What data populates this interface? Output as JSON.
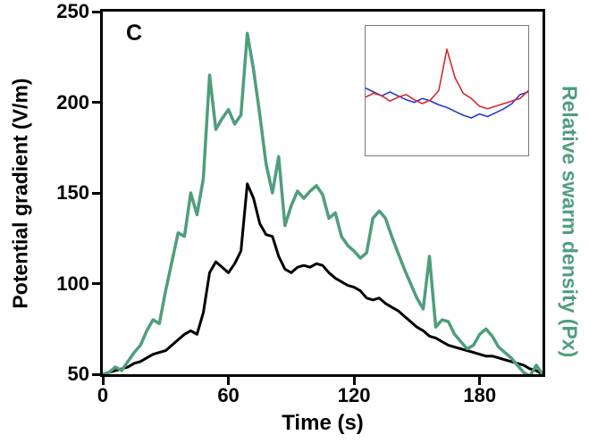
{
  "panel_label": "C",
  "colors": {
    "swarm_green": "#4f9e7b",
    "potential_black": "#000000",
    "inset_red": "#d42a2a",
    "inset_blue": "#2637d4",
    "axis": "#000000",
    "background": "#ffffff"
  },
  "chart_data": {
    "type": "line",
    "title": "",
    "xlabel": "Time (s)",
    "ylabel_left": "Potential gradient (V/m)",
    "ylabel_right": "Relative swarm density (Px)",
    "xlim": [
      0,
      210
    ],
    "ylim": [
      50,
      250
    ],
    "x_ticks": [
      0,
      60,
      120,
      180
    ],
    "y_ticks": [
      50,
      100,
      150,
      200,
      250
    ],
    "grid": false,
    "legend": "none",
    "series": [
      {
        "name": "Potential gradient (V/m)",
        "color": "#000000",
        "width": 3,
        "x": [
          0,
          3,
          6,
          9,
          12,
          15,
          18,
          21,
          24,
          27,
          30,
          33,
          36,
          39,
          42,
          45,
          48,
          51,
          54,
          57,
          60,
          63,
          66,
          69,
          72,
          75,
          78,
          81,
          84,
          87,
          90,
          93,
          96,
          99,
          102,
          105,
          108,
          111,
          114,
          117,
          120,
          123,
          126,
          129,
          132,
          135,
          138,
          141,
          144,
          147,
          150,
          153,
          156,
          159,
          162,
          165,
          168,
          171,
          174,
          177,
          180,
          183,
          186,
          189,
          192,
          195,
          198,
          201,
          204,
          207,
          210
        ],
        "values": [
          50,
          51,
          52,
          53,
          54,
          56,
          57,
          59,
          61,
          62,
          63,
          66,
          69,
          72,
          74,
          72,
          84,
          106,
          112,
          109,
          106,
          111,
          118,
          155,
          147,
          133,
          127,
          126,
          115,
          108,
          106,
          109,
          110,
          109,
          111,
          110,
          106,
          103,
          101,
          99,
          98,
          96,
          92,
          91,
          92,
          89,
          87,
          85,
          82,
          79,
          76,
          74,
          71,
          70,
          68,
          66,
          65,
          64,
          63,
          62,
          61,
          60,
          60,
          59,
          58,
          57,
          56,
          55,
          53,
          52,
          50
        ]
      },
      {
        "name": "Relative swarm density (Px)",
        "color": "#4f9e7b",
        "width": 3.5,
        "x": [
          0,
          3,
          6,
          9,
          12,
          15,
          18,
          21,
          24,
          27,
          30,
          33,
          36,
          39,
          42,
          45,
          48,
          51,
          54,
          57,
          60,
          63,
          66,
          69,
          72,
          75,
          78,
          81,
          84,
          87,
          90,
          93,
          96,
          99,
          102,
          105,
          108,
          111,
          114,
          117,
          120,
          123,
          126,
          129,
          132,
          135,
          138,
          141,
          144,
          147,
          150,
          153,
          156,
          159,
          162,
          165,
          168,
          171,
          174,
          177,
          180,
          183,
          186,
          189,
          192,
          195,
          198,
          201,
          204,
          207,
          210
        ],
        "values": [
          50,
          51,
          54,
          52,
          57,
          62,
          66,
          74,
          80,
          78,
          96,
          112,
          128,
          126,
          150,
          138,
          158,
          215,
          185,
          191,
          196,
          188,
          193,
          238,
          218,
          193,
          166,
          150,
          170,
          132,
          143,
          151,
          147,
          151,
          154,
          149,
          136,
          139,
          126,
          121,
          118,
          114,
          117,
          136,
          140,
          136,
          126,
          117,
          108,
          100,
          92,
          86,
          115,
          76,
          80,
          79,
          72,
          68,
          64,
          66,
          72,
          75,
          71,
          65,
          62,
          59,
          55,
          51,
          49,
          55,
          50
        ]
      }
    ],
    "inset": {
      "type": "line",
      "xlim": [
        0,
        100
      ],
      "ylim": [
        0,
        1
      ],
      "series": [
        {
          "name": "inset-blue-trace",
          "color": "#2637d4",
          "width": 1.6,
          "x": [
            0,
            5,
            10,
            15,
            20,
            25,
            30,
            35,
            40,
            45,
            50,
            55,
            60,
            65,
            70,
            75,
            80,
            85,
            90,
            95,
            100
          ],
          "values": [
            0.52,
            0.49,
            0.46,
            0.49,
            0.46,
            0.43,
            0.41,
            0.44,
            0.42,
            0.39,
            0.37,
            0.34,
            0.31,
            0.29,
            0.32,
            0.3,
            0.33,
            0.36,
            0.4,
            0.47,
            0.49
          ]
        },
        {
          "name": "inset-red-trace",
          "color": "#d42a2a",
          "width": 1.6,
          "x": [
            0,
            5,
            10,
            15,
            20,
            25,
            30,
            35,
            40,
            45,
            50,
            55,
            60,
            65,
            70,
            75,
            80,
            85,
            90,
            95,
            100
          ],
          "values": [
            0.45,
            0.48,
            0.46,
            0.42,
            0.45,
            0.47,
            0.43,
            0.4,
            0.43,
            0.5,
            0.82,
            0.6,
            0.48,
            0.44,
            0.38,
            0.36,
            0.38,
            0.4,
            0.42,
            0.44,
            0.5
          ]
        }
      ]
    }
  }
}
